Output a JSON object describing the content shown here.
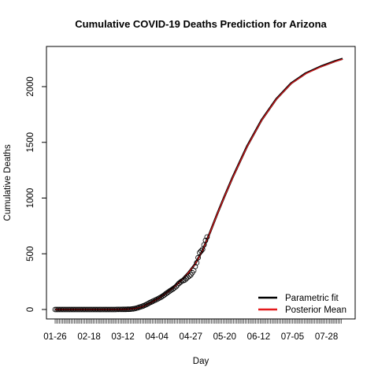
{
  "chart_data": {
    "type": "line",
    "title": "Cumulative COVID-19 Deaths Prediction for Arizona",
    "xlabel": "Day",
    "ylabel": "Cumulative Deaths",
    "x_tick_labels": [
      "01-26",
      "02-18",
      "03-12",
      "04-04",
      "04-27",
      "05-20",
      "06-12",
      "07-05",
      "07-28"
    ],
    "y_ticks": [
      0,
      500,
      1000,
      1500,
      2000
    ],
    "xlim_days": [
      0,
      196
    ],
    "ylim": [
      -60,
      2350
    ],
    "day_count": 195,
    "observed_until_day": 103,
    "legend": {
      "position": "bottom-right",
      "entries": [
        {
          "label": "Parametric fit",
          "color": "#000000"
        },
        {
          "label": "Posterior Mean",
          "color": "#e41a1c"
        }
      ]
    },
    "observed_points": {
      "style": "open-circle",
      "x_days": [
        0,
        10,
        20,
        30,
        40,
        45,
        50,
        52,
        54,
        56,
        58,
        60,
        62,
        64,
        66,
        68,
        70,
        72,
        74,
        76,
        78,
        80,
        82,
        84,
        86,
        88,
        90,
        92,
        94,
        96,
        98,
        100,
        101,
        102,
        103
      ],
      "y": [
        0,
        0,
        0,
        0,
        0,
        1,
        2,
        4,
        8,
        15,
        24,
        33,
        45,
        60,
        72,
        85,
        98,
        112,
        130,
        150,
        168,
        185,
        205,
        235,
        255,
        265,
        290,
        310,
        350,
        420,
        510,
        540,
        580,
        620,
        650
      ]
    },
    "series": [
      {
        "name": "Parametric fit",
        "color": "#000000",
        "x_days": [
          0,
          40,
          45,
          50,
          55,
          60,
          65,
          70,
          75,
          80,
          85,
          90,
          95,
          100,
          105,
          110,
          115,
          120,
          130,
          140,
          150,
          160,
          170,
          180,
          190,
          195
        ],
        "y": [
          0,
          0,
          1,
          3,
          10,
          30,
          62,
          100,
          145,
          195,
          255,
          325,
          410,
          530,
          690,
          860,
          1020,
          1175,
          1460,
          1700,
          1890,
          2030,
          2120,
          2180,
          2230,
          2250
        ]
      },
      {
        "name": "Posterior Mean",
        "color": "#e41a1c",
        "x_days": [
          0,
          40,
          45,
          50,
          55,
          60,
          65,
          70,
          75,
          80,
          85,
          90,
          95,
          100,
          105,
          110,
          115,
          120,
          130,
          140,
          150,
          160,
          170,
          180,
          190,
          195
        ],
        "y": [
          0,
          0,
          1,
          3,
          10,
          29,
          60,
          98,
          142,
          192,
          252,
          322,
          408,
          528,
          688,
          858,
          1018,
          1172,
          1456,
          1696,
          1886,
          2026,
          2116,
          2176,
          2226,
          2246
        ]
      }
    ]
  }
}
